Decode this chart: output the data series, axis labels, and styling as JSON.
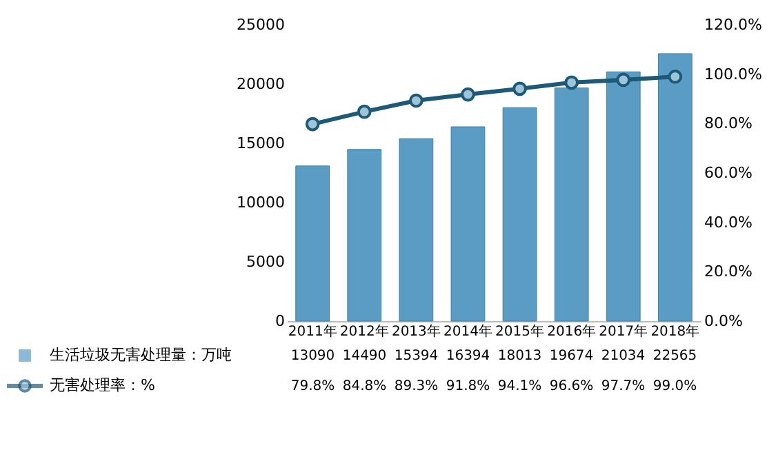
{
  "chart_data": {
    "type": "bar",
    "categories": [
      "2011年",
      "2012年",
      "2013年",
      "2014年",
      "2015年",
      "2016年",
      "2017年",
      "2018年"
    ],
    "series": [
      {
        "name": "生活垃圾无害处理量：万吨",
        "color": "#5a9cc4",
        "values": [
          13090,
          14490,
          15394,
          16394,
          18013,
          19674,
          21034,
          22565
        ],
        "value_labels": [
          "13090",
          "14490",
          "15394",
          "16394",
          "18013",
          "19674",
          "21034",
          "22565"
        ]
      },
      {
        "name": "无害处理率：%",
        "type": "line",
        "axis": "y2",
        "color": "#1d5a78",
        "values": [
          79.8,
          84.8,
          89.3,
          91.8,
          94.1,
          96.6,
          97.7,
          99.0
        ],
        "value_labels": [
          "79.8%",
          "84.8%",
          "89.3%",
          "91.8%",
          "94.1%",
          "96.6%",
          "97.7%",
          "99.0%"
        ]
      }
    ],
    "ylim": [
      0,
      25000
    ],
    "yticks": [
      0,
      5000,
      10000,
      15000,
      20000,
      25000
    ],
    "y2lim": [
      0,
      120
    ],
    "y2ticks": [
      {
        "value": 0,
        "label": "0.0%"
      },
      {
        "value": 20,
        "label": "20.0%"
      },
      {
        "value": 40,
        "label": "40.0%"
      },
      {
        "value": 60,
        "label": "60.0%"
      },
      {
        "value": 80,
        "label": "80.0%"
      },
      {
        "value": 100,
        "label": "100.0%"
      },
      {
        "value": 120,
        "label": "120.0%"
      }
    ],
    "grid": false,
    "legend": "bottom",
    "marker": "circle",
    "line_style": "solid"
  }
}
